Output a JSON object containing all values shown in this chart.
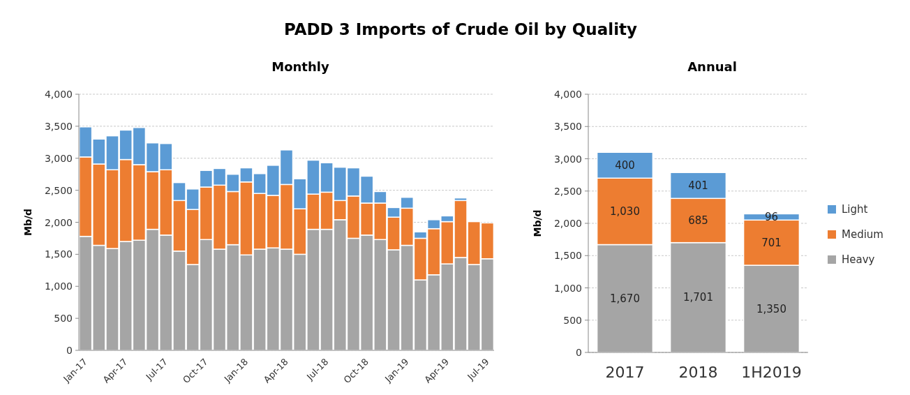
{
  "chart_data": [
    {
      "type": "bar",
      "title": "PADD 3 Imports of Crude Oil by Quality",
      "subtitle": "Monthly",
      "ylabel": "Mb/d",
      "stacked": true,
      "grid": "y",
      "legend": false,
      "categories": [
        "Jan-17",
        null,
        null,
        "Apr-17",
        null,
        null,
        "Jul-17",
        null,
        null,
        "Oct-17",
        null,
        null,
        "Jan-18",
        null,
        null,
        "Apr-18",
        null,
        null,
        "Jul-18",
        null,
        null,
        "Oct-18",
        null,
        null,
        "Jan-19",
        null,
        null,
        "Apr-19",
        null,
        null,
        "Jul-19"
      ],
      "ylim": [
        0,
        4000
      ],
      "yticks": [
        {
          "value": 0,
          "label": "0"
        },
        {
          "value": 500,
          "label": "500"
        },
        {
          "value": 1000,
          "label": "1,000"
        },
        {
          "value": 1500,
          "label": "1,500"
        },
        {
          "value": 2000,
          "label": "2,000"
        },
        {
          "value": 2500,
          "label": "2,500"
        },
        {
          "value": 3000,
          "label": "3,000"
        },
        {
          "value": 3500,
          "label": "3,500"
        },
        {
          "value": 4000,
          "label": "4,000"
        }
      ],
      "series": [
        {
          "color": "#a5a5a5",
          "values": [
            1780,
            1640,
            1590,
            1700,
            1720,
            1890,
            1800,
            1550,
            1340,
            1730,
            1580,
            1650,
            1490,
            1580,
            1600,
            1580,
            1500,
            1890,
            1890,
            2040,
            1750,
            1800,
            1730,
            1570,
            1640,
            1100,
            1180,
            1350,
            1450,
            1340,
            1430
          ]
        },
        {
          "color": "#ed7d31",
          "values": [
            1240,
            1270,
            1230,
            1280,
            1180,
            900,
            1020,
            790,
            860,
            820,
            1000,
            830,
            1140,
            870,
            820,
            1010,
            710,
            550,
            580,
            300,
            660,
            500,
            570,
            510,
            580,
            650,
            720,
            660,
            890,
            670,
            560
          ]
        },
        {
          "color": "#5b9bd5",
          "values": [
            470,
            390,
            530,
            460,
            580,
            450,
            410,
            280,
            320,
            260,
            260,
            270,
            220,
            310,
            470,
            540,
            470,
            530,
            460,
            520,
            440,
            420,
            180,
            150,
            170,
            100,
            140,
            90,
            40,
            0,
            0
          ]
        }
      ]
    },
    {
      "type": "bar",
      "title": "Annual",
      "ylabel": "Mb/d",
      "stacked": true,
      "grid": "y",
      "legend": "right",
      "categories": [
        "2017",
        "2018",
        "1H2019"
      ],
      "ylim": [
        0,
        4000
      ],
      "yticks": [
        {
          "value": 0,
          "label": "0"
        },
        {
          "value": 500,
          "label": "500"
        },
        {
          "value": 1000,
          "label": "1,000"
        },
        {
          "value": 1500,
          "label": "1,500"
        },
        {
          "value": 2000,
          "label": "2,000"
        },
        {
          "value": 2500,
          "label": "2,500"
        },
        {
          "value": 3000,
          "label": "3,000"
        },
        {
          "value": 3500,
          "label": "3,500"
        },
        {
          "value": 4000,
          "label": "4,000"
        }
      ],
      "series": [
        {
          "name": "Heavy",
          "color": "#a5a5a5",
          "values": [
            1670,
            1701,
            1350
          ],
          "value_labels": [
            "1,670",
            "1,701",
            "1,350"
          ]
        },
        {
          "name": "Medium",
          "color": "#ed7d31",
          "values": [
            1030,
            685,
            701
          ],
          "value_labels": [
            "1,030",
            "685",
            "701"
          ]
        },
        {
          "name": "Light",
          "color": "#5b9bd5",
          "values": [
            400,
            401,
            96
          ],
          "value_labels": [
            "400",
            "401",
            "96"
          ]
        }
      ]
    }
  ]
}
